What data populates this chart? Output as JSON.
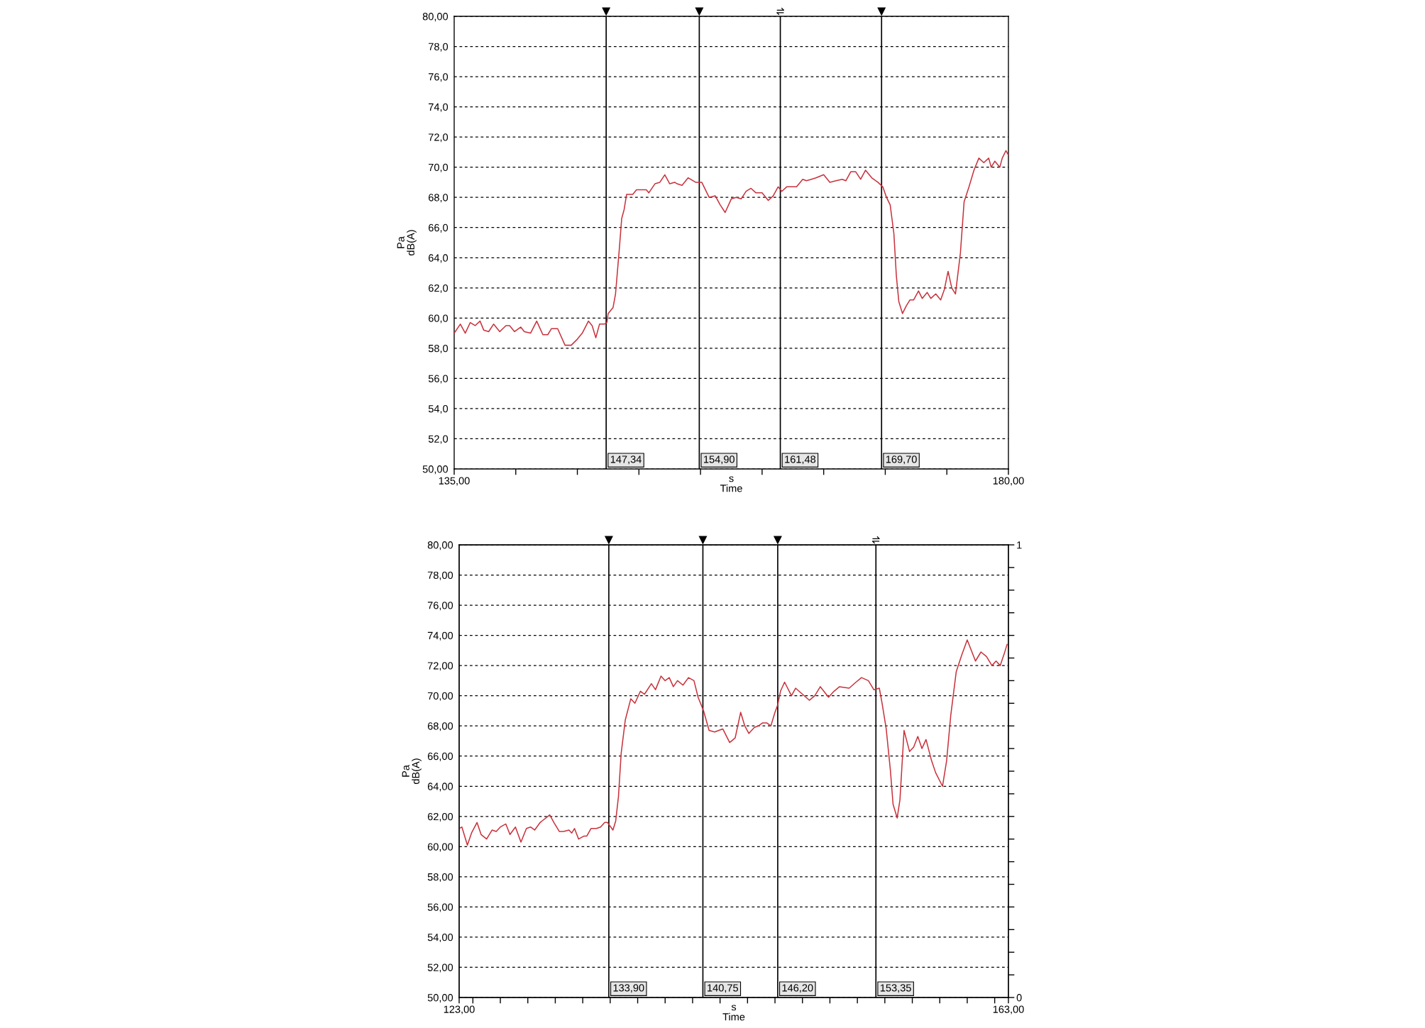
{
  "chart_data": [
    {
      "type": "line",
      "xlabel": "s\nTime",
      "ylabel": "Pa\ndB(A)",
      "xlim": [
        135,
        180
      ],
      "xticks": [
        {
          "value": 135,
          "label": "135,00"
        },
        {
          "value": 140,
          "label": null
        },
        {
          "value": 145,
          "label": null
        },
        {
          "value": 150,
          "label": null
        },
        {
          "value": 155,
          "label": null
        },
        {
          "value": 160,
          "label": null
        },
        {
          "value": 165,
          "label": null
        },
        {
          "value": 170,
          "label": null
        },
        {
          "value": 175,
          "label": null
        },
        {
          "value": 180,
          "label": "180,00"
        }
      ],
      "ylim": [
        50,
        80
      ],
      "yticks": [
        {
          "value": 50,
          "label": "50,00"
        },
        {
          "value": 52,
          "label": "52,0"
        },
        {
          "value": 54,
          "label": "54,0"
        },
        {
          "value": 56,
          "label": "56,0"
        },
        {
          "value": 58,
          "label": "58,0"
        },
        {
          "value": 60,
          "label": "60,0"
        },
        {
          "value": 62,
          "label": "62,0"
        },
        {
          "value": 64,
          "label": "64,0"
        },
        {
          "value": 66,
          "label": "66,0"
        },
        {
          "value": 68,
          "label": "68,0"
        },
        {
          "value": 70,
          "label": "70,0"
        },
        {
          "value": 72,
          "label": "72,0"
        },
        {
          "value": 74,
          "label": "74,0"
        },
        {
          "value": 76,
          "label": "76,0"
        },
        {
          "value": 78,
          "label": "78,0"
        },
        {
          "value": 80,
          "label": "80,00"
        }
      ],
      "grid": "y",
      "ref_lines": [
        {
          "axis": "x",
          "value": 147.34,
          "label": "147,34"
        },
        {
          "axis": "x",
          "value": 154.9,
          "label": "154,90"
        },
        {
          "axis": "x",
          "value": 161.48,
          "label": "161,48"
        },
        {
          "axis": "x",
          "value": 169.7,
          "label": "169,70"
        }
      ],
      "x": [
        135.0,
        135.5,
        135.9,
        136.3,
        136.7,
        137.1,
        137.4,
        137.8,
        138.2,
        138.7,
        139.2,
        139.5,
        139.9,
        140.4,
        140.7,
        141.2,
        141.7,
        142.2,
        142.6,
        142.9,
        143.4,
        144.0,
        144.5,
        145.0,
        145.4,
        145.9,
        146.2,
        146.5,
        146.8,
        147.2,
        147.4,
        147.5,
        147.9,
        148.1,
        148.4,
        148.6,
        148.8,
        149.0,
        149.5,
        149.8,
        150.2,
        150.6,
        150.8,
        151.3,
        151.7,
        152.1,
        152.5,
        152.9,
        153.1,
        153.5,
        154.0,
        154.6,
        155.1,
        155.7,
        156.2,
        156.6,
        157.0,
        157.5,
        157.9,
        158.3,
        158.7,
        159.1,
        159.5,
        160.0,
        160.5,
        160.9,
        161.3,
        161.6,
        162.0,
        162.5,
        162.8,
        163.3,
        163.6,
        164.0,
        164.4,
        165.0,
        165.5,
        166.0,
        166.5,
        166.8,
        167.2,
        167.6,
        168.0,
        168.4,
        168.9,
        169.4,
        169.8,
        170.1,
        170.4,
        170.7,
        170.9,
        171.1,
        171.4,
        171.7,
        172.0,
        172.3,
        172.7,
        173.0,
        173.4,
        173.7,
        174.1,
        174.5,
        174.8,
        175.1,
        175.4,
        175.7,
        176.1,
        176.4,
        176.8,
        177.2,
        177.6,
        178.0,
        178.4,
        178.6,
        178.9,
        179.3,
        179.5,
        179.8,
        180.0
      ],
      "series": [
        {
          "color": "#c8323c",
          "values": [
            59.0,
            59.6,
            59.0,
            59.7,
            59.5,
            59.8,
            59.2,
            59.1,
            59.6,
            59.1,
            59.5,
            59.5,
            59.1,
            59.4,
            59.1,
            59.0,
            59.8,
            58.9,
            58.9,
            59.3,
            59.3,
            58.2,
            58.2,
            58.6,
            59.0,
            59.8,
            59.5,
            58.7,
            59.6,
            59.6,
            59.7,
            60.3,
            60.7,
            61.6,
            64.5,
            66.6,
            67.2,
            68.2,
            68.2,
            68.5,
            68.5,
            68.5,
            68.3,
            68.9,
            69.0,
            69.5,
            68.9,
            69.0,
            68.9,
            68.8,
            69.3,
            69.0,
            69.0,
            68.0,
            68.1,
            67.5,
            67.0,
            67.9,
            68.0,
            67.9,
            68.4,
            68.6,
            68.3,
            68.3,
            67.8,
            68.1,
            68.7,
            68.4,
            68.7,
            68.7,
            68.7,
            69.2,
            69.1,
            69.2,
            69.3,
            69.5,
            69.0,
            69.1,
            69.2,
            69.1,
            69.7,
            69.7,
            69.2,
            69.8,
            69.3,
            69.0,
            68.7,
            68.0,
            67.5,
            65.6,
            62.8,
            61.1,
            60.3,
            60.8,
            61.2,
            61.2,
            61.8,
            61.3,
            61.7,
            61.3,
            61.6,
            61.2,
            61.9,
            63.1,
            62.0,
            61.6,
            64.3,
            67.7,
            68.7,
            69.8,
            70.6,
            70.3,
            70.6,
            70.0,
            70.4,
            70.0,
            70.6,
            71.1,
            70.8
          ]
        }
      ]
    },
    {
      "type": "line",
      "xlabel": "s\nTime",
      "ylabel": "Pa\ndB(A)",
      "xlim": [
        123,
        163
      ],
      "xticks": [
        {
          "value": 123,
          "label": "123,00"
        },
        {
          "value": 124,
          "label": null
        },
        {
          "value": 126,
          "label": null
        },
        {
          "value": 128,
          "label": null
        },
        {
          "value": 130,
          "label": null
        },
        {
          "value": 132,
          "label": null
        },
        {
          "value": 134,
          "label": null
        },
        {
          "value": 136,
          "label": null
        },
        {
          "value": 138,
          "label": null
        },
        {
          "value": 140,
          "label": null
        },
        {
          "value": 142,
          "label": null
        },
        {
          "value": 144,
          "label": null
        },
        {
          "value": 146,
          "label": null
        },
        {
          "value": 148,
          "label": null
        },
        {
          "value": 150,
          "label": null
        },
        {
          "value": 152,
          "label": null
        },
        {
          "value": 154,
          "label": null
        },
        {
          "value": 156,
          "label": null
        },
        {
          "value": 158,
          "label": null
        },
        {
          "value": 160,
          "label": null
        },
        {
          "value": 162,
          "label": null
        },
        {
          "value": 163,
          "label": "163,00"
        }
      ],
      "ylim": [
        50,
        80
      ],
      "yticks": [
        {
          "value": 50,
          "label": "50,00"
        },
        {
          "value": 52,
          "label": "52,00"
        },
        {
          "value": 54,
          "label": "54,00"
        },
        {
          "value": 56,
          "label": "56,00"
        },
        {
          "value": 58,
          "label": "58,00"
        },
        {
          "value": 60,
          "label": "60,00"
        },
        {
          "value": 62,
          "label": "62,00"
        },
        {
          "value": 64,
          "label": "64,00"
        },
        {
          "value": 66,
          "label": "66,00"
        },
        {
          "value": 68,
          "label": "68,00"
        },
        {
          "value": 70,
          "label": "70,00"
        },
        {
          "value": 72,
          "label": "72,00"
        },
        {
          "value": 74,
          "label": "74,00"
        },
        {
          "value": 76,
          "label": "76,00"
        },
        {
          "value": 78,
          "label": "78,00"
        },
        {
          "value": 80,
          "label": "80,00"
        }
      ],
      "y2lim": [
        0,
        1
      ],
      "y2ticks": [
        0,
        {
          "value": 0.05,
          "label": null
        },
        {
          "value": 0.1,
          "label": null
        },
        {
          "value": 0.15,
          "label": null
        },
        {
          "value": 0.2,
          "label": null
        },
        {
          "value": 0.25,
          "label": null
        },
        {
          "value": 0.3,
          "label": null
        },
        {
          "value": 0.35,
          "label": null
        },
        {
          "value": 0.4,
          "label": null
        },
        {
          "value": 0.45,
          "label": null
        },
        {
          "value": 0.5,
          "label": null
        },
        {
          "value": 0.55,
          "label": null
        },
        {
          "value": 0.6,
          "label": null
        },
        {
          "value": 0.65,
          "label": null
        },
        {
          "value": 0.7,
          "label": null
        },
        {
          "value": 0.75,
          "label": null
        },
        {
          "value": 0.8,
          "label": null
        },
        {
          "value": 0.85,
          "label": null
        },
        {
          "value": 0.9,
          "label": null
        },
        {
          "value": 0.95,
          "label": null
        },
        1
      ],
      "grid": "y",
      "ref_lines": [
        {
          "axis": "x",
          "value": 133.9,
          "label": "133,90"
        },
        {
          "axis": "x",
          "value": 140.75,
          "label": "140,75"
        },
        {
          "axis": "x",
          "value": 146.2,
          "label": "146,20"
        },
        {
          "axis": "x",
          "value": 153.35,
          "label": "153,35"
        }
      ],
      "x": [
        123.0,
        123.2,
        123.6,
        123.9,
        124.3,
        124.6,
        125.0,
        125.4,
        125.7,
        126.0,
        126.4,
        126.7,
        127.1,
        127.5,
        127.9,
        128.2,
        128.5,
        128.9,
        129.6,
        129.9,
        130.3,
        130.6,
        131.0,
        131.2,
        131.4,
        131.7,
        132.1,
        132.3,
        132.6,
        133.0,
        133.3,
        133.6,
        133.8,
        134.2,
        134.4,
        134.6,
        134.8,
        135.1,
        135.5,
        135.8,
        136.2,
        136.5,
        137.0,
        137.3,
        137.7,
        138.0,
        138.3,
        138.6,
        138.9,
        139.3,
        139.7,
        140.1,
        140.4,
        140.8,
        141.2,
        141.6,
        142.2,
        142.7,
        143.1,
        143.5,
        143.8,
        144.1,
        144.5,
        144.8,
        145.1,
        145.4,
        145.7,
        146.0,
        146.2,
        146.4,
        146.7,
        147.2,
        147.5,
        148.0,
        148.5,
        148.9,
        149.3,
        149.9,
        150.3,
        150.7,
        151.4,
        151.9,
        152.3,
        152.8,
        153.2,
        153.6,
        153.8,
        154.1,
        154.4,
        154.6,
        154.9,
        155.1,
        155.4,
        155.8,
        156.1,
        156.4,
        156.7,
        157.0,
        157.4,
        157.7,
        158.2,
        158.5,
        158.8,
        159.2,
        159.6,
        160.0,
        160.6,
        161.0,
        161.4,
        161.8,
        162.1,
        162.4,
        162.7,
        162.9
      ],
      "series": [
        {
          "color": "#c8323c",
          "values": [
            61.2,
            61.3,
            60.1,
            60.9,
            61.6,
            60.8,
            60.5,
            61.1,
            61.0,
            61.3,
            61.5,
            60.8,
            61.3,
            60.3,
            61.2,
            61.3,
            61.1,
            61.6,
            62.1,
            61.6,
            61.0,
            61.0,
            61.1,
            60.9,
            61.2,
            60.5,
            60.7,
            60.7,
            61.2,
            61.2,
            61.3,
            61.6,
            61.6,
            61.1,
            61.7,
            63.3,
            66.2,
            68.4,
            69.8,
            69.5,
            70.3,
            70.1,
            70.8,
            70.4,
            71.3,
            71.0,
            71.2,
            70.6,
            71.0,
            70.7,
            71.2,
            71.0,
            69.9,
            69.0,
            67.7,
            67.6,
            67.8,
            66.9,
            67.2,
            68.9,
            68.0,
            67.5,
            67.9,
            68.0,
            68.2,
            68.2,
            68.0,
            68.9,
            69.4,
            70.3,
            70.9,
            70.0,
            70.5,
            70.1,
            69.7,
            70.0,
            70.6,
            69.9,
            70.3,
            70.6,
            70.5,
            70.9,
            71.2,
            71.0,
            70.4,
            70.5,
            69.5,
            67.8,
            65.1,
            62.8,
            61.9,
            63.1,
            67.7,
            66.3,
            66.6,
            67.3,
            66.5,
            67.1,
            65.7,
            64.9,
            64.0,
            65.7,
            68.7,
            71.6,
            72.7,
            73.7,
            72.3,
            72.9,
            72.6,
            72.0,
            72.3,
            72.0,
            72.8,
            73.4
          ]
        }
      ]
    }
  ]
}
